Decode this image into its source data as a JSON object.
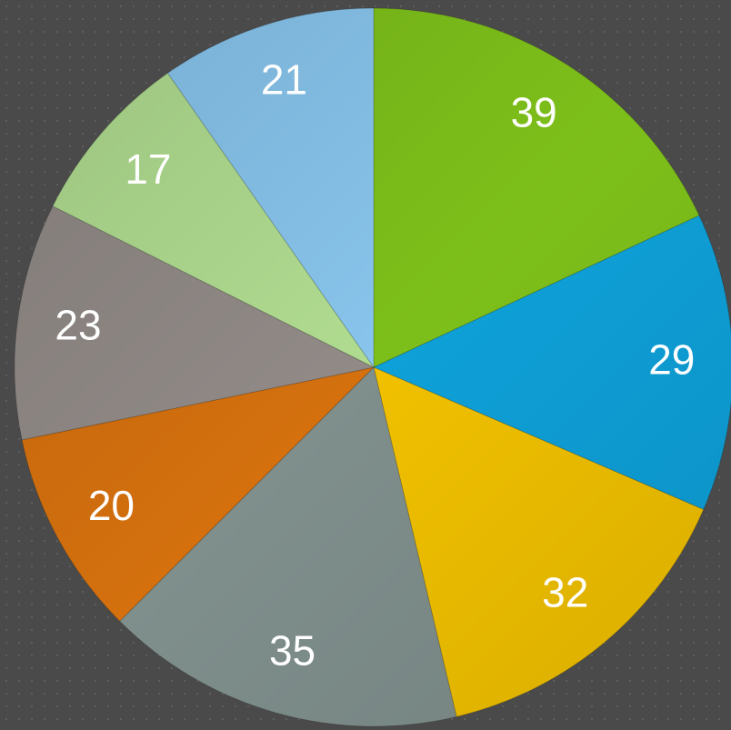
{
  "chart_data": {
    "type": "pie",
    "values": [
      39,
      29,
      32,
      35,
      20,
      23,
      17,
      21
    ],
    "colors": [
      "#7dbf1a",
      "#0ea0d8",
      "#f0c000",
      "#7f8f8c",
      "#d4700e",
      "#918a87",
      "#b0dc90",
      "#88c4ec"
    ]
  }
}
